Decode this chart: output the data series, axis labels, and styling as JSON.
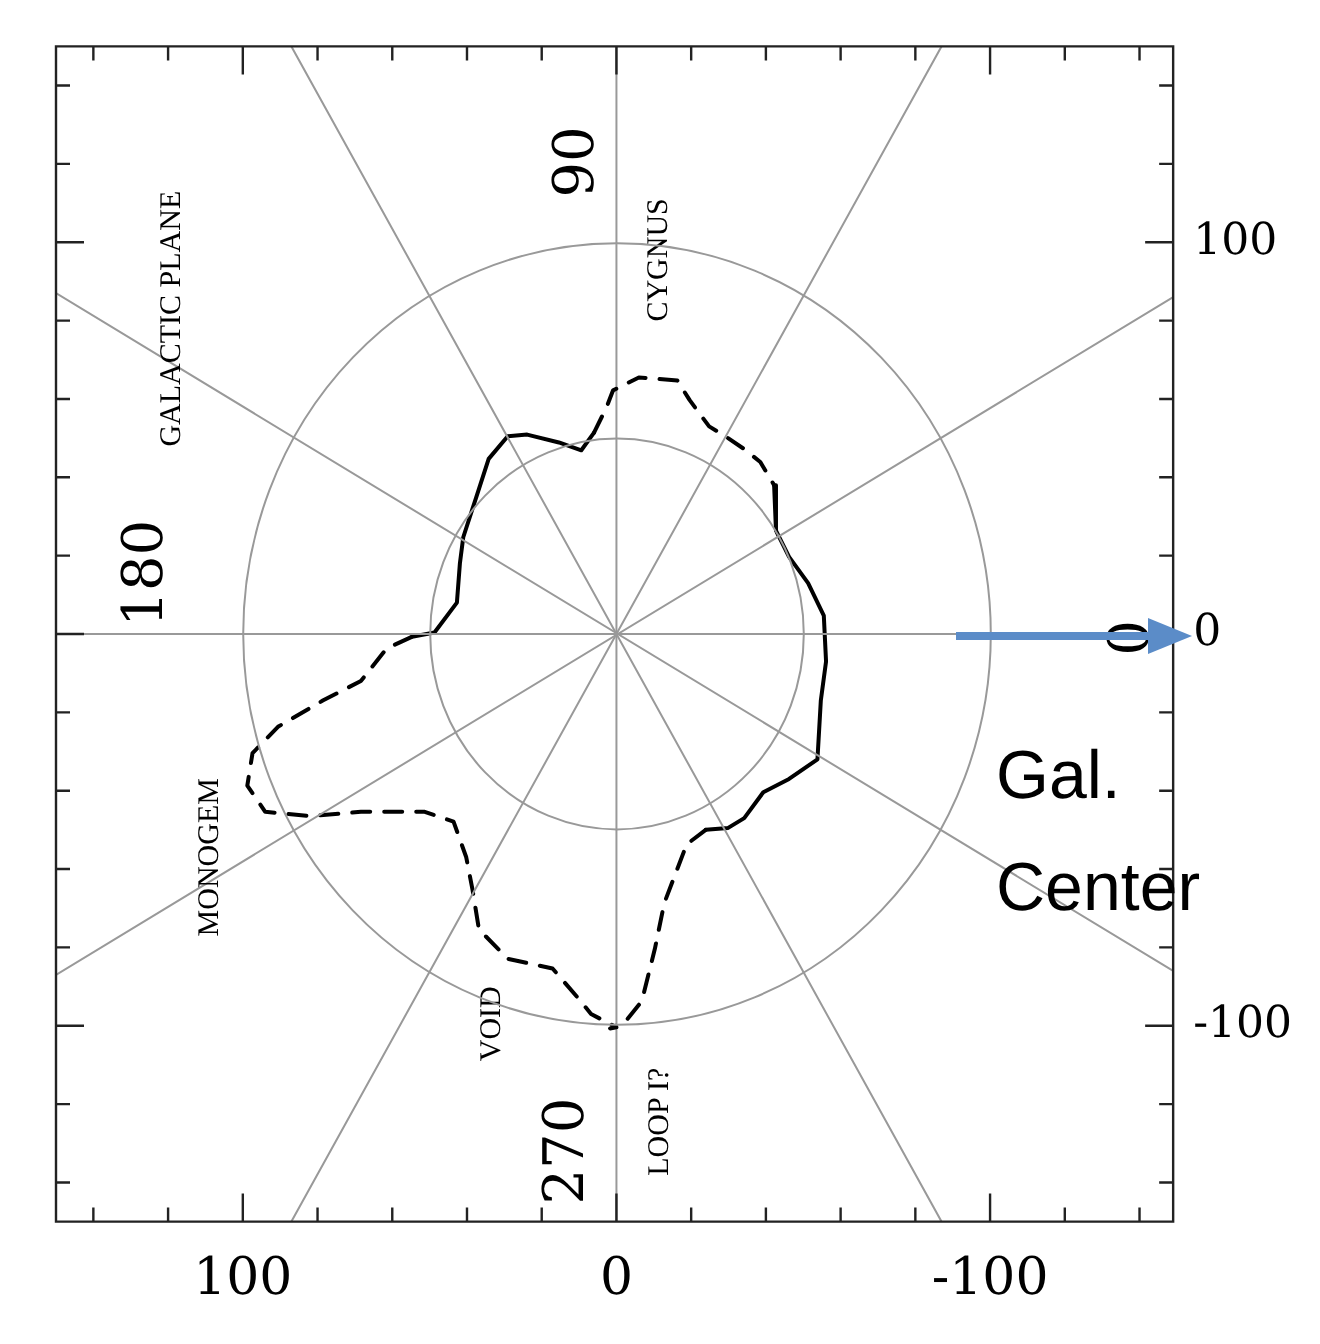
{
  "chart_data": {
    "type": "line",
    "grid": false,
    "legend": false,
    "xlim": [
      150,
      -149
    ],
    "ylim": [
      -150,
      150
    ],
    "xticks": [
      {
        "value": 140,
        "label": null
      },
      {
        "value": 120,
        "label": null
      },
      100,
      {
        "value": 80,
        "label": null
      },
      {
        "value": 60,
        "label": null
      },
      {
        "value": 40,
        "label": null
      },
      {
        "value": 20,
        "label": null
      },
      0,
      {
        "value": -20,
        "label": null
      },
      {
        "value": -40,
        "label": null
      },
      {
        "value": -60,
        "label": null
      },
      {
        "value": -80,
        "label": null
      },
      -100,
      {
        "value": -120,
        "label": null
      },
      {
        "value": -140,
        "label": null
      }
    ],
    "yticks": [
      {
        "value": -140,
        "label": null
      },
      {
        "value": -120,
        "label": null
      },
      -100,
      {
        "value": -80,
        "label": null
      },
      {
        "value": -60,
        "label": null
      },
      {
        "value": -40,
        "label": null
      },
      {
        "value": -20,
        "label": null
      },
      0,
      {
        "value": 20,
        "label": null
      },
      {
        "value": 40,
        "label": null
      },
      {
        "value": 60,
        "label": null
      },
      {
        "value": 80,
        "label": null
      },
      100,
      {
        "value": 120,
        "label": null
      },
      {
        "value": 140,
        "label": null
      }
    ],
    "ref_lines": [
      {
        "axis": "x",
        "value": 0,
        "color": "#999999"
      }
    ],
    "series": [
      {
        "color": "#999999",
        "x": [
          150,
          -149
        ],
        "values": [
          0,
          0
        ]
      },
      {
        "color": "#999999",
        "x": [
          150,
          -149
        ],
        "values": [
          -87,
          86
        ]
      },
      {
        "color": "#999999",
        "x": [
          87,
          -87
        ],
        "values": [
          -150,
          150
        ]
      },
      {
        "color": "#999999",
        "x": [
          87,
          -87
        ],
        "values": [
          150,
          -150
        ]
      },
      {
        "color": "#999999",
        "x": [
          150,
          -149
        ],
        "values": [
          87,
          -86
        ]
      },
      {
        "color": "#000000",
        "line_style": "solid",
        "x": [
          54.7,
          48.7,
          42.7,
          41.9,
          41.0,
          37.6,
          34.2,
          29.1,
          23.9,
          15.4,
          9.4,
          6.0
        ],
        "values": [
          -0.7,
          0.4,
          8,
          18,
          24.7,
          34.7,
          44.7,
          50.5,
          50.9,
          48.9,
          46.9,
          51.4
        ]
      },
      {
        "color": "#000000",
        "line_style": "dashed",
        "x": [
          6.0,
          2.6,
          0.9,
          -6.0,
          -16.3,
          -19.6,
          -24.8,
          -29.1,
          -34.2,
          -38.5,
          -42.2
        ],
        "values": [
          51.4,
          58,
          62.2,
          65.5,
          64.7,
          59.7,
          53,
          50.5,
          47.2,
          43.9,
          38
        ]
      },
      {
        "color": "#000000",
        "line_style": "solid",
        "x": [
          -42.2,
          -42.7,
          -46.2,
          -51.3,
          -55.5,
          -56.1,
          -54.7,
          -53.8,
          -46.2,
          -39.3,
          -34.2,
          -29.9,
          -23.9
        ],
        "values": [
          38,
          26.4,
          19.7,
          13,
          4.7,
          -7,
          -17,
          -32,
          -37,
          -40.4,
          -47,
          -49.5,
          -50
        ]
      },
      {
        "color": "#000000",
        "line_style": "dashed",
        "x": [
          -23.9,
          -18.8,
          -12.8,
          -10.3,
          -6.8,
          -2.6,
          1.7,
          0,
          6.8,
          10.3,
          17.1,
          29.1,
          36.8,
          38.5,
          40.2,
          43.6,
          51.3,
          68.4,
          82.1,
          94,
          98.8,
          97.4,
          90.6,
          78.6,
          68.4,
          61.5,
          54.7
        ],
        "values": [
          -50,
          -53.7,
          -68.7,
          -80.3,
          -93.7,
          -98.7,
          -100.7,
          -100.4,
          -97,
          -92.9,
          -85.4,
          -82.9,
          -75.4,
          -65.4,
          -57,
          -47.9,
          -45.4,
          -45.4,
          -46.5,
          -45.4,
          -38.7,
          -30.4,
          -23.7,
          -17,
          -12,
          -3.7,
          -0.7
        ]
      }
    ],
    "annotations": [
      "90",
      "180",
      {
        "text": "0",
        "x": -138.5,
        "y": -1
      },
      "270",
      "GALACTIC PLANE",
      "CYGNUS",
      "MONOGEM",
      "VOID",
      "LOOP I?",
      "Gal. Center"
    ]
  }
}
